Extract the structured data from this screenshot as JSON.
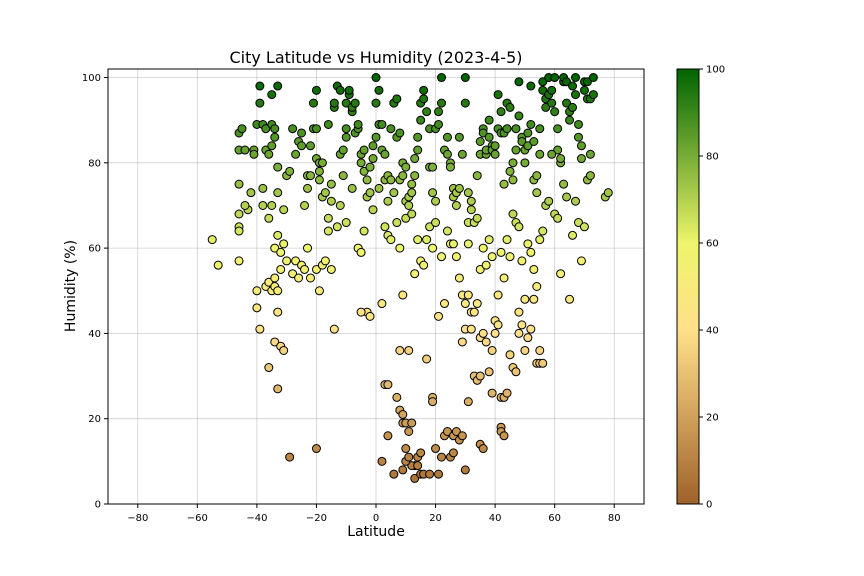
{
  "chart_data": {
    "type": "scatter",
    "title": "City Latitude vs Humidity (2023-4-5)",
    "xlabel": "Latitude",
    "ylabel": "Humidity (%)",
    "xlim": [
      -90,
      90
    ],
    "ylim": [
      0,
      102
    ],
    "xticks": [
      -80,
      -60,
      -40,
      -20,
      0,
      20,
      40,
      60,
      80
    ],
    "yticks": [
      0,
      20,
      40,
      60,
      80,
      100
    ],
    "grid": true,
    "colorbar": {
      "range": [
        0,
        100
      ],
      "ticks": [
        0,
        20,
        40,
        60,
        80,
        100
      ],
      "color_stops": [
        "#a0622a",
        "#ffe08a",
        "#eef56a",
        "#006400"
      ]
    },
    "points": [
      [
        -55,
        62
      ],
      [
        -53,
        56
      ],
      [
        -46,
        75
      ],
      [
        -46,
        87
      ],
      [
        -45,
        88
      ],
      [
        -46,
        83
      ],
      [
        -44,
        83
      ],
      [
        -43,
        69
      ],
      [
        -42,
        73
      ],
      [
        -41,
        83
      ],
      [
        -41,
        82
      ],
      [
        -40,
        89
      ],
      [
        -39,
        98
      ],
      [
        -39,
        94
      ],
      [
        -38,
        89
      ],
      [
        -38,
        74
      ],
      [
        -38,
        70
      ],
      [
        -37,
        88
      ],
      [
        -37,
        83
      ],
      [
        -36,
        82
      ],
      [
        -35,
        84
      ],
      [
        -35,
        96
      ],
      [
        -35,
        89
      ],
      [
        -34,
        88
      ],
      [
        -34,
        86
      ],
      [
        -33,
        98
      ],
      [
        -33,
        79
      ],
      [
        -33,
        73
      ],
      [
        -33,
        63
      ],
      [
        -34,
        60
      ],
      [
        -32,
        59
      ],
      [
        -36,
        67
      ],
      [
        -35,
        70
      ],
      [
        -32,
        55
      ],
      [
        -31,
        69
      ],
      [
        -30,
        77
      ],
      [
        -29,
        78
      ],
      [
        -28,
        88
      ],
      [
        -27,
        82
      ],
      [
        -26,
        85
      ],
      [
        -25,
        87
      ],
      [
        -25,
        84
      ],
      [
        -24,
        70
      ],
      [
        -23,
        77
      ],
      [
        -23,
        74
      ],
      [
        -22,
        77
      ],
      [
        -22,
        84
      ],
      [
        -21,
        88
      ],
      [
        -21,
        94
      ],
      [
        -20,
        97
      ],
      [
        -20,
        88
      ],
      [
        -20,
        81
      ],
      [
        -19,
        80
      ],
      [
        -19,
        78
      ],
      [
        -19,
        76
      ],
      [
        -18,
        80
      ],
      [
        -18,
        72
      ],
      [
        -17,
        73
      ],
      [
        -16,
        89
      ],
      [
        -15,
        75
      ],
      [
        -15,
        71
      ],
      [
        -14,
        93
      ],
      [
        -14,
        94
      ],
      [
        -13,
        98
      ],
      [
        -12,
        97
      ],
      [
        -12,
        82
      ],
      [
        -11,
        83
      ],
      [
        -11,
        77
      ],
      [
        -10,
        86
      ],
      [
        -10,
        88
      ],
      [
        -10,
        94
      ],
      [
        -9,
        96
      ],
      [
        -9,
        97
      ],
      [
        -8,
        92
      ],
      [
        -8,
        93
      ],
      [
        -7,
        94
      ],
      [
        -7,
        87
      ],
      [
        -6,
        88
      ],
      [
        -6,
        89
      ],
      [
        -5,
        80
      ],
      [
        -5,
        82
      ],
      [
        -4,
        83
      ],
      [
        -4,
        78
      ],
      [
        -3,
        76
      ],
      [
        -3,
        72
      ],
      [
        -2,
        73
      ],
      [
        -2,
        79
      ],
      [
        -1,
        81
      ],
      [
        -1,
        84
      ],
      [
        0,
        86
      ],
      [
        0,
        94
      ],
      [
        0,
        100
      ],
      [
        1,
        97
      ],
      [
        1,
        89
      ],
      [
        2,
        89
      ],
      [
        2,
        83
      ],
      [
        3,
        76
      ],
      [
        3,
        82
      ],
      [
        4,
        77
      ],
      [
        4,
        71
      ],
      [
        5,
        76
      ],
      [
        5,
        88
      ],
      [
        6,
        94
      ],
      [
        6,
        94
      ],
      [
        7,
        95
      ],
      [
        7,
        86
      ],
      [
        8,
        87
      ],
      [
        8,
        76
      ],
      [
        9,
        80
      ],
      [
        9,
        77
      ],
      [
        10,
        79
      ],
      [
        10,
        71
      ],
      [
        11,
        72
      ],
      [
        12,
        73
      ],
      [
        12,
        75
      ],
      [
        13,
        77
      ],
      [
        13,
        81
      ],
      [
        14,
        83
      ],
      [
        14,
        86
      ],
      [
        15,
        90
      ],
      [
        15,
        94
      ],
      [
        16,
        97
      ],
      [
        16,
        95
      ],
      [
        17,
        92
      ],
      [
        18,
        88
      ],
      [
        18,
        79
      ],
      [
        19,
        79
      ],
      [
        19,
        73
      ],
      [
        20,
        71
      ],
      [
        20,
        88
      ],
      [
        21,
        89
      ],
      [
        21,
        92
      ],
      [
        22,
        94
      ],
      [
        22,
        100
      ],
      [
        23,
        83
      ],
      [
        24,
        86
      ],
      [
        24,
        82
      ],
      [
        25,
        80
      ],
      [
        25,
        79
      ],
      [
        26,
        74
      ],
      [
        26,
        72
      ],
      [
        27,
        70
      ],
      [
        27,
        73
      ],
      [
        28,
        74
      ],
      [
        28,
        86
      ],
      [
        29,
        82
      ],
      [
        30,
        94
      ],
      [
        30,
        100
      ],
      [
        31,
        73
      ],
      [
        31,
        66
      ],
      [
        32,
        71
      ],
      [
        32,
        69
      ],
      [
        33,
        66
      ],
      [
        34,
        67
      ],
      [
        34,
        77
      ],
      [
        35,
        82
      ],
      [
        35,
        85
      ],
      [
        36,
        88
      ],
      [
        36,
        87
      ],
      [
        37,
        82
      ],
      [
        37,
        83
      ],
      [
        38,
        86
      ],
      [
        38,
        90
      ],
      [
        39,
        84
      ],
      [
        39,
        83
      ],
      [
        40,
        82
      ],
      [
        40,
        84
      ],
      [
        41,
        88
      ],
      [
        41,
        96
      ],
      [
        42,
        92
      ],
      [
        42,
        87
      ],
      [
        43,
        87
      ],
      [
        43,
        75
      ],
      [
        44,
        88
      ],
      [
        44,
        94
      ],
      [
        45,
        93
      ],
      [
        45,
        78
      ],
      [
        46,
        80
      ],
      [
        46,
        76
      ],
      [
        47,
        83
      ],
      [
        47,
        88
      ],
      [
        48,
        99
      ],
      [
        48,
        91
      ],
      [
        49,
        86
      ],
      [
        49,
        85
      ],
      [
        50,
        83
      ],
      [
        50,
        80
      ],
      [
        51,
        84
      ],
      [
        51,
        87
      ],
      [
        52,
        89
      ],
      [
        52,
        98
      ],
      [
        53,
        85
      ],
      [
        53,
        76
      ],
      [
        54,
        77
      ],
      [
        54,
        73
      ],
      [
        55,
        88
      ],
      [
        55,
        82
      ],
      [
        56,
        97
      ],
      [
        56,
        99
      ],
      [
        57,
        95
      ],
      [
        57,
        93
      ],
      [
        58,
        96
      ],
      [
        58,
        100
      ],
      [
        59,
        97
      ],
      [
        59,
        94
      ],
      [
        60,
        100
      ],
      [
        60,
        92
      ],
      [
        61,
        88
      ],
      [
        61,
        83
      ],
      [
        62,
        80
      ],
      [
        62,
        81
      ],
      [
        63,
        99
      ],
      [
        63,
        100
      ],
      [
        64,
        99
      ],
      [
        64,
        94
      ],
      [
        65,
        92
      ],
      [
        65,
        90
      ],
      [
        66,
        93
      ],
      [
        66,
        98
      ],
      [
        67,
        100
      ],
      [
        67,
        96
      ],
      [
        68,
        89
      ],
      [
        68,
        86
      ],
      [
        69,
        84
      ],
      [
        69,
        81
      ],
      [
        70,
        99
      ],
      [
        70,
        97
      ],
      [
        71,
        99
      ],
      [
        71,
        95
      ],
      [
        72,
        95
      ],
      [
        72,
        82
      ],
      [
        73,
        96
      ],
      [
        73,
        100
      ],
      [
        77,
        72
      ],
      [
        78,
        73
      ],
      [
        -46,
        68
      ],
      [
        -46,
        65
      ],
      [
        -46,
        64
      ],
      [
        -46,
        57
      ],
      [
        -44,
        70
      ],
      [
        -40,
        50
      ],
      [
        -40,
        46
      ],
      [
        -39,
        41
      ],
      [
        -37,
        51
      ],
      [
        -36,
        52
      ],
      [
        -35,
        50
      ],
      [
        -34,
        51
      ],
      [
        -34,
        53
      ],
      [
        -33,
        45
      ],
      [
        -33,
        50
      ],
      [
        -34,
        38
      ],
      [
        -32,
        37
      ],
      [
        -31,
        36
      ],
      [
        -31,
        61
      ],
      [
        -30,
        57
      ],
      [
        -28,
        54
      ],
      [
        -27,
        57
      ],
      [
        -26,
        53
      ],
      [
        -25,
        56
      ],
      [
        -24,
        55
      ],
      [
        -23,
        60
      ],
      [
        -22,
        53
      ],
      [
        -20,
        55
      ],
      [
        -19,
        50
      ],
      [
        -18,
        56
      ],
      [
        -17,
        57
      ],
      [
        -15,
        55
      ],
      [
        -14,
        41
      ],
      [
        -13,
        65
      ],
      [
        -16,
        64
      ],
      [
        -16,
        67
      ],
      [
        -12,
        70
      ],
      [
        -10,
        66
      ],
      [
        -8,
        74
      ],
      [
        -6,
        60
      ],
      [
        -5,
        59
      ],
      [
        -4,
        64
      ],
      [
        -3,
        45
      ],
      [
        -2,
        44
      ],
      [
        -1,
        69
      ],
      [
        1,
        74
      ],
      [
        2,
        47
      ],
      [
        3,
        65
      ],
      [
        4,
        63
      ],
      [
        5,
        62
      ],
      [
        6,
        73
      ],
      [
        7,
        66
      ],
      [
        8,
        60
      ],
      [
        9,
        49
      ],
      [
        10,
        67
      ],
      [
        11,
        70
      ],
      [
        12,
        68
      ],
      [
        13,
        54
      ],
      [
        14,
        62
      ],
      [
        15,
        57
      ],
      [
        16,
        56
      ],
      [
        17,
        62
      ],
      [
        18,
        65
      ],
      [
        19,
        60
      ],
      [
        20,
        66
      ],
      [
        21,
        44
      ],
      [
        22,
        58
      ],
      [
        23,
        47
      ],
      [
        24,
        64
      ],
      [
        25,
        61
      ],
      [
        26,
        61
      ],
      [
        27,
        58
      ],
      [
        28,
        53
      ],
      [
        29,
        49
      ],
      [
        30,
        41
      ],
      [
        31,
        61
      ],
      [
        32,
        45
      ],
      [
        33,
        45
      ],
      [
        34,
        47
      ],
      [
        35,
        55
      ],
      [
        36,
        60
      ],
      [
        37,
        56
      ],
      [
        38,
        62
      ],
      [
        39,
        58
      ],
      [
        40,
        43
      ],
      [
        41,
        49
      ],
      [
        42,
        59
      ],
      [
        43,
        53
      ],
      [
        44,
        62
      ],
      [
        45,
        58
      ],
      [
        46,
        68
      ],
      [
        47,
        66
      ],
      [
        48,
        65
      ],
      [
        49,
        57
      ],
      [
        50,
        48
      ],
      [
        51,
        61
      ],
      [
        52,
        59
      ],
      [
        53,
        55
      ],
      [
        54,
        51
      ],
      [
        55,
        62
      ],
      [
        56,
        64
      ],
      [
        57,
        70
      ],
      [
        58,
        71
      ],
      [
        59,
        82
      ],
      [
        60,
        68
      ],
      [
        61,
        67
      ],
      [
        62,
        54
      ],
      [
        63,
        75
      ],
      [
        64,
        72
      ],
      [
        65,
        48
      ],
      [
        66,
        63
      ],
      [
        67,
        71
      ],
      [
        68,
        66
      ],
      [
        69,
        57
      ],
      [
        70,
        65
      ],
      [
        71,
        76
      ],
      [
        72,
        77
      ],
      [
        -36,
        32
      ],
      [
        -33,
        27
      ],
      [
        -29,
        11
      ],
      [
        -20,
        13
      ],
      [
        -5,
        45
      ],
      [
        3,
        28
      ],
      [
        4,
        28
      ],
      [
        7,
        25
      ],
      [
        8,
        22
      ],
      [
        9,
        21
      ],
      [
        9,
        19
      ],
      [
        10,
        19
      ],
      [
        10,
        13
      ],
      [
        11,
        36
      ],
      [
        11,
        17
      ],
      [
        12,
        19
      ],
      [
        13,
        9
      ],
      [
        14,
        11
      ],
      [
        13,
        6
      ],
      [
        15,
        7
      ],
      [
        16,
        7
      ],
      [
        17,
        34
      ],
      [
        18,
        7
      ],
      [
        19,
        25
      ],
      [
        19,
        24
      ],
      [
        20,
        13
      ],
      [
        21,
        7
      ],
      [
        22,
        11
      ],
      [
        23,
        16
      ],
      [
        24,
        17
      ],
      [
        25,
        11
      ],
      [
        26,
        12
      ],
      [
        26,
        16
      ],
      [
        27,
        17
      ],
      [
        28,
        15
      ],
      [
        29,
        16
      ],
      [
        30,
        8
      ],
      [
        31,
        24
      ],
      [
        32,
        41
      ],
      [
        33,
        30
      ],
      [
        34,
        29
      ],
      [
        35,
        30
      ],
      [
        35,
        39
      ],
      [
        36,
        40
      ],
      [
        37,
        38
      ],
      [
        38,
        31
      ],
      [
        39,
        26
      ],
      [
        39,
        36
      ],
      [
        40,
        40
      ],
      [
        41,
        42
      ],
      [
        42,
        25
      ],
      [
        42,
        18
      ],
      [
        42,
        17
      ],
      [
        43,
        16
      ],
      [
        43,
        25
      ],
      [
        44,
        26
      ],
      [
        45,
        35
      ],
      [
        46,
        32
      ],
      [
        47,
        31
      ],
      [
        48,
        45
      ],
      [
        49,
        42
      ],
      [
        50,
        36
      ],
      [
        51,
        39
      ],
      [
        52,
        41
      ],
      [
        53,
        48
      ],
      [
        54,
        33
      ],
      [
        55,
        36
      ],
      [
        55,
        33
      ],
      [
        56,
        33
      ],
      [
        48,
        40
      ],
      [
        29,
        38
      ],
      [
        30,
        47
      ],
      [
        31,
        49
      ],
      [
        9,
        8
      ],
      [
        12,
        9
      ],
      [
        14,
        9
      ],
      [
        2,
        10
      ],
      [
        4,
        16
      ],
      [
        6,
        7
      ],
      [
        10,
        10
      ],
      [
        11,
        11
      ],
      [
        15,
        12
      ],
      [
        8,
        36
      ],
      [
        35,
        14
      ],
      [
        36,
        13
      ]
    ]
  }
}
